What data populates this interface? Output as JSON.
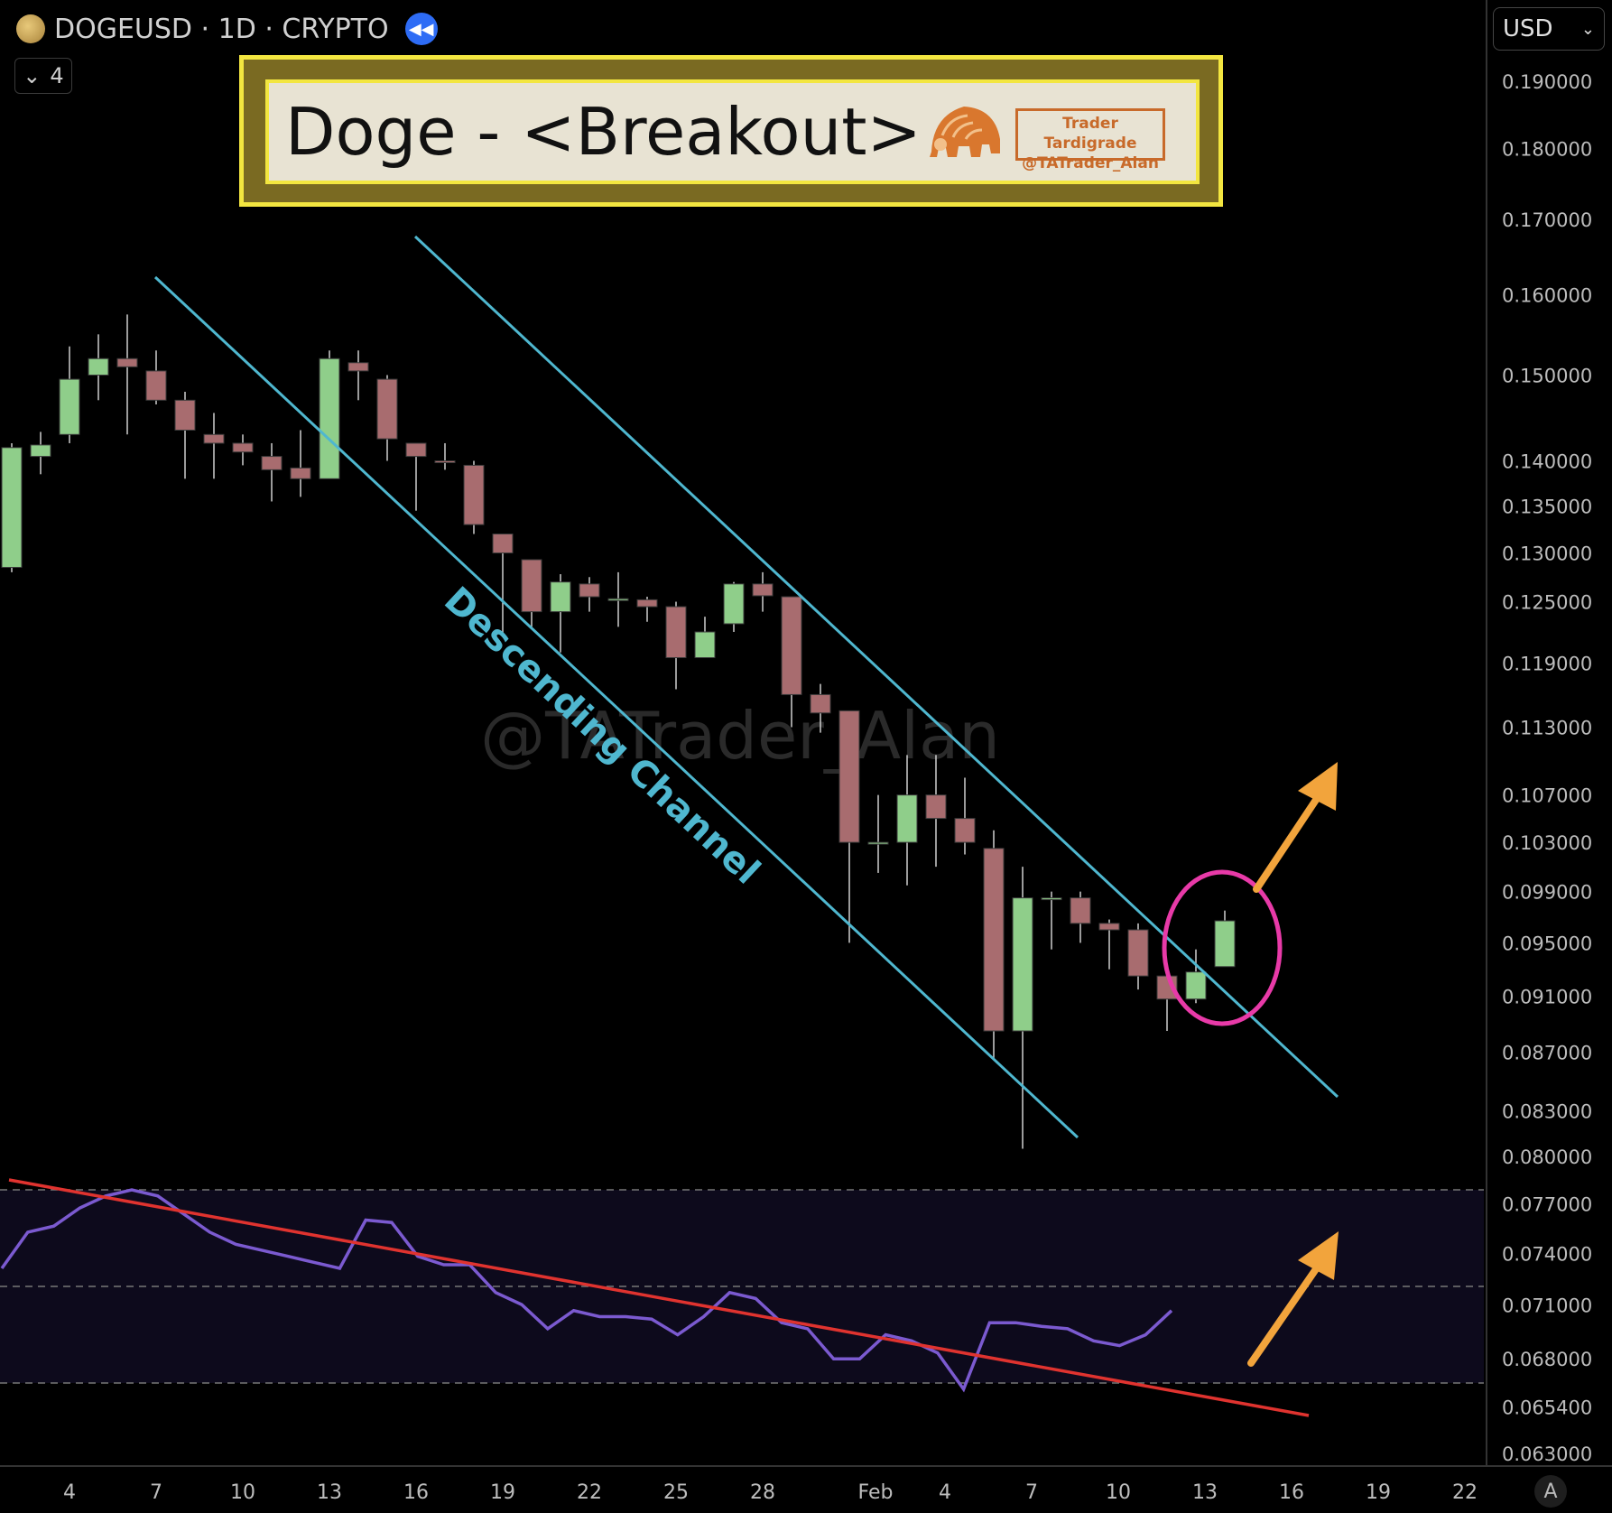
{
  "header": {
    "title": "DOGEUSD · 1D · CRYPTO",
    "indicator_count": "4"
  },
  "currency": "USD",
  "banner": {
    "title": "Doge - <Breakout>",
    "brand_line1": "Trader Tardigrade",
    "brand_line2": "@TATrader_Alan"
  },
  "watermark": "@TATrader_Alan",
  "auto_button": "A",
  "colors": {
    "up": "#8fce8a",
    "down": "#a86c6f",
    "channel": "#4fb7cf",
    "rsi": "#7b5ad0",
    "trend": "#e0332f",
    "circle": "#e83aa8",
    "arrow": "#f2a43c",
    "banner_border": "#f3e640"
  },
  "chart_data": [
    {
      "type": "candlestick",
      "title": "DOGEUSD · 1D · CRYPTO",
      "x_ticks": [
        "4",
        "7",
        "10",
        "13",
        "16",
        "19",
        "22",
        "25",
        "28",
        "Feb",
        "4",
        "7",
        "10",
        "13",
        "16",
        "19",
        "22"
      ],
      "y_ticks": [
        "0.190000",
        "0.180000",
        "0.170000",
        "0.160000",
        "0.150000",
        "0.140000",
        "0.135000",
        "0.130000",
        "0.125000",
        "0.119000",
        "0.113000",
        "0.107000",
        "0.103000",
        "0.099000",
        "0.095000",
        "0.091000",
        "0.087000",
        "0.083000",
        "0.080000",
        "0.077000",
        "0.074000",
        "0.071000",
        "0.068000",
        "0.065400",
        "0.063000"
      ],
      "y_scale": "log",
      "candles": [
        {
          "o": 0.1285,
          "h": 0.142,
          "l": 0.128,
          "c": 0.1415
        },
        {
          "o": 0.1405,
          "h": 0.1433,
          "l": 0.1385,
          "c": 0.1418
        },
        {
          "o": 0.143,
          "h": 0.1535,
          "l": 0.142,
          "c": 0.1495
        },
        {
          "o": 0.15,
          "h": 0.155,
          "l": 0.147,
          "c": 0.152
        },
        {
          "o": 0.152,
          "h": 0.1575,
          "l": 0.143,
          "c": 0.151
        },
        {
          "o": 0.1505,
          "h": 0.153,
          "l": 0.1465,
          "c": 0.147
        },
        {
          "o": 0.147,
          "h": 0.148,
          "l": 0.138,
          "c": 0.1435
        },
        {
          "o": 0.143,
          "h": 0.1455,
          "l": 0.138,
          "c": 0.142
        },
        {
          "o": 0.142,
          "h": 0.143,
          "l": 0.1395,
          "c": 0.141
        },
        {
          "o": 0.1405,
          "h": 0.142,
          "l": 0.1355,
          "c": 0.139
        },
        {
          "o": 0.1392,
          "h": 0.1435,
          "l": 0.136,
          "c": 0.138
        },
        {
          "o": 0.138,
          "h": 0.153,
          "l": 0.138,
          "c": 0.152
        },
        {
          "o": 0.1515,
          "h": 0.153,
          "l": 0.147,
          "c": 0.1505
        },
        {
          "o": 0.1495,
          "h": 0.15,
          "l": 0.14,
          "c": 0.1425
        },
        {
          "o": 0.142,
          "h": 0.142,
          "l": 0.1345,
          "c": 0.1405
        },
        {
          "o": 0.14,
          "h": 0.142,
          "l": 0.139,
          "c": 0.1398
        },
        {
          "o": 0.1395,
          "h": 0.14,
          "l": 0.132,
          "c": 0.133
        },
        {
          "o": 0.132,
          "h": 0.132,
          "l": 0.1215,
          "c": 0.13
        },
        {
          "o": 0.1293,
          "h": 0.1293,
          "l": 0.1225,
          "c": 0.124
        },
        {
          "o": 0.124,
          "h": 0.1278,
          "l": 0.12,
          "c": 0.127
        },
        {
          "o": 0.1268,
          "h": 0.1275,
          "l": 0.124,
          "c": 0.1255
        },
        {
          "o": 0.1253,
          "h": 0.128,
          "l": 0.1225,
          "c": 0.1253
        },
        {
          "o": 0.1252,
          "h": 0.1255,
          "l": 0.123,
          "c": 0.1245
        },
        {
          "o": 0.1245,
          "h": 0.125,
          "l": 0.1165,
          "c": 0.1195
        },
        {
          "o": 0.1195,
          "h": 0.1235,
          "l": 0.1195,
          "c": 0.122
        },
        {
          "o": 0.1228,
          "h": 0.127,
          "l": 0.122,
          "c": 0.1268
        },
        {
          "o": 0.1268,
          "h": 0.128,
          "l": 0.124,
          "c": 0.1256
        },
        {
          "o": 0.1255,
          "h": 0.1255,
          "l": 0.113,
          "c": 0.116
        },
        {
          "o": 0.116,
          "h": 0.117,
          "l": 0.1125,
          "c": 0.1143
        },
        {
          "o": 0.1145,
          "h": 0.1145,
          "l": 0.095,
          "c": 0.103
        },
        {
          "o": 0.103,
          "h": 0.107,
          "l": 0.1005,
          "c": 0.103
        },
        {
          "o": 0.103,
          "h": 0.1105,
          "l": 0.0995,
          "c": 0.107
        },
        {
          "o": 0.107,
          "h": 0.1105,
          "l": 0.101,
          "c": 0.105
        },
        {
          "o": 0.105,
          "h": 0.1085,
          "l": 0.102,
          "c": 0.103
        },
        {
          "o": 0.1025,
          "h": 0.104,
          "l": 0.0865,
          "c": 0.0885
        },
        {
          "o": 0.0885,
          "h": 0.101,
          "l": 0.0805,
          "c": 0.0985
        },
        {
          "o": 0.0985,
          "h": 0.099,
          "l": 0.0945,
          "c": 0.0985
        },
        {
          "o": 0.0985,
          "h": 0.099,
          "l": 0.095,
          "c": 0.0965
        },
        {
          "o": 0.0965,
          "h": 0.0968,
          "l": 0.093,
          "c": 0.096
        },
        {
          "o": 0.096,
          "h": 0.0965,
          "l": 0.0915,
          "c": 0.0925
        },
        {
          "o": 0.0925,
          "h": 0.0925,
          "l": 0.0885,
          "c": 0.0908
        },
        {
          "o": 0.0908,
          "h": 0.0945,
          "l": 0.0905,
          "c": 0.0928
        },
        {
          "o": 0.0932,
          "h": 0.0975,
          "l": 0.0932,
          "c": 0.0967
        }
      ],
      "annotation": "Descending Channel"
    },
    {
      "type": "line",
      "name": "indicator",
      "values": [
        72,
        75,
        75.5,
        77,
        78,
        78.5,
        78,
        76.5,
        75,
        74,
        73.5,
        73,
        72.5,
        72,
        76,
        75.8,
        73,
        72.3,
        72.3,
        70,
        69,
        67,
        68.5,
        68,
        68,
        67.8,
        66.5,
        68,
        70,
        69.5,
        67.5,
        67,
        64.5,
        64.5,
        66.5,
        66,
        65,
        62,
        67.5,
        67.5,
        67.2,
        67,
        66,
        65.6,
        66.5,
        68.5
      ]
    }
  ]
}
